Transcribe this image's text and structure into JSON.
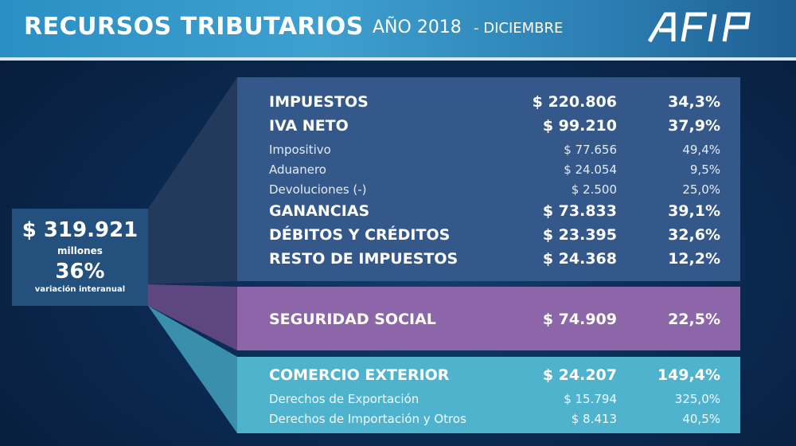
{
  "header": {
    "title": "RECURSOS TRIBUTARIOS",
    "year": "AÑO 2018",
    "month": "- DICIEMBRE",
    "logo_text": "AFIP"
  },
  "summary": {
    "amount": "$ 319.921",
    "unit": "millones",
    "variation": "36%",
    "variation_label": "variación interanual"
  },
  "impuestos": {
    "rows": [
      {
        "label": "IMPUESTOS",
        "amount": "$ 220.806",
        "pct": "34,3%"
      },
      {
        "label": "IVA NETO",
        "amount": "$ 99.210",
        "pct": "37,9%"
      },
      {
        "label": "Impositivo",
        "amount": "$ 77.656",
        "pct": "49,4%"
      },
      {
        "label": "Aduanero",
        "amount": "$ 24.054",
        "pct": "9,5%"
      },
      {
        "label": "Devoluciones (-)",
        "amount": "$ 2.500",
        "pct": "25,0%"
      },
      {
        "label": "GANANCIAS",
        "amount": "$ 73.833",
        "pct": "39,1%"
      },
      {
        "label": "DÉBITOS Y CRÉDITOS",
        "amount": "$ 23.395",
        "pct": "32,6%"
      },
      {
        "label": "RESTO DE IMPUESTOS",
        "amount": "$ 24.368",
        "pct": "12,2%"
      }
    ]
  },
  "seguridad_social": {
    "label": "SEGURIDAD SOCIAL",
    "amount": "$ 74.909",
    "pct": "22,5%"
  },
  "comercio_exterior": {
    "rows": [
      {
        "label": "COMERCIO EXTERIOR",
        "amount": "$ 24.207",
        "pct": "149,4%"
      },
      {
        "label": "Derechos de Exportación",
        "amount": "$ 15.794",
        "pct": "325,0%"
      },
      {
        "label": "Derechos de Importación y Otros",
        "amount": "$ 8.413",
        "pct": "40,5%"
      }
    ]
  },
  "colors": {
    "header_blue": "#3ea0cf",
    "impuestos_panel": "#34588a",
    "seguridad_social_panel": "#8c66a8",
    "comercio_exterior_panel": "#4fb3ce",
    "background": "#0b2a52"
  }
}
